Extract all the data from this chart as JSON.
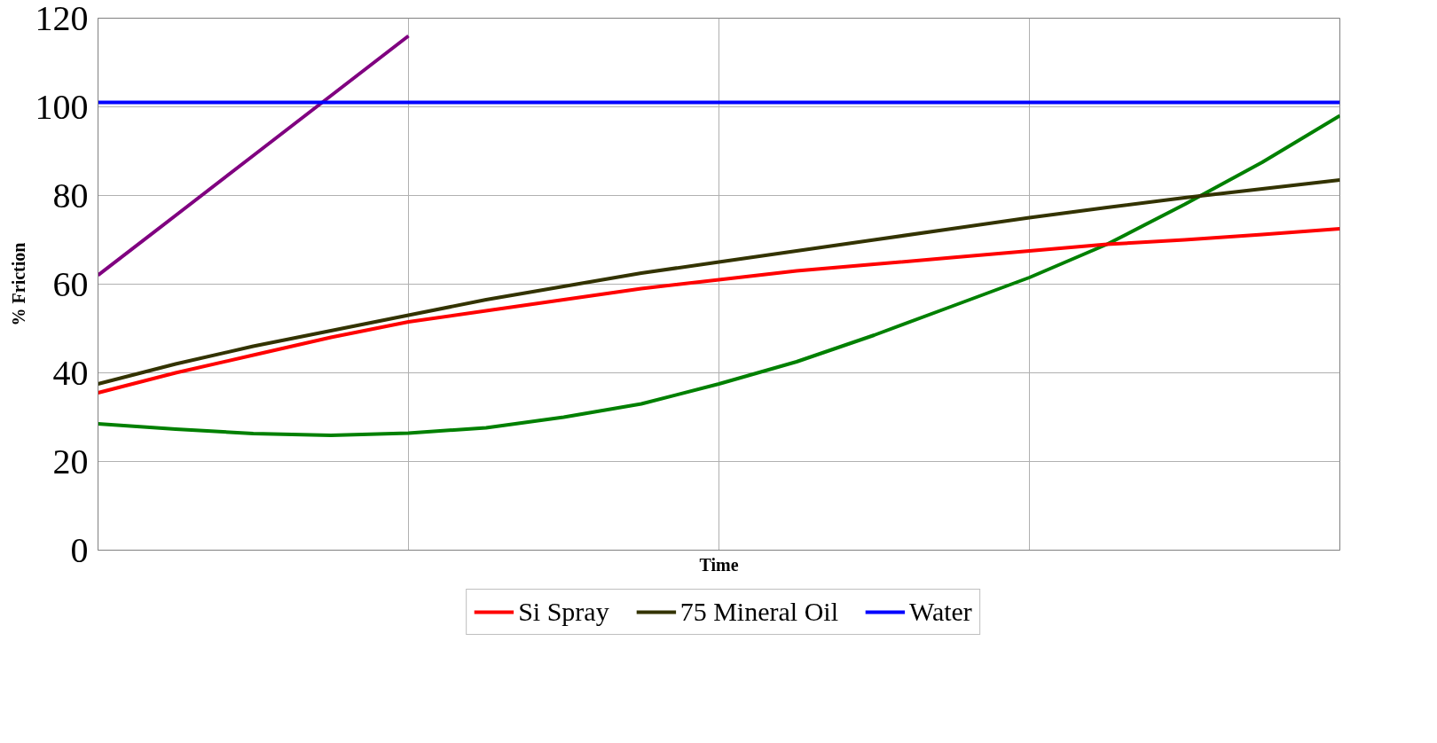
{
  "chart_data": {
    "type": "line",
    "xlabel": "Time",
    "ylabel": "% Friction",
    "categories": [
      null,
      null,
      null,
      null,
      null,
      null,
      null,
      null,
      null,
      null,
      null,
      null,
      null,
      null,
      null,
      null,
      null
    ],
    "ylim": [
      0,
      120
    ],
    "yticks": [
      0,
      20,
      40,
      60,
      80,
      100,
      120
    ],
    "tick_labels": "y",
    "grid": true,
    "legend": "bottom",
    "marker": "none",
    "line_style": "solid",
    "series": [
      {
        "color": "#800080",
        "values": [
          62,
          75.5,
          89,
          102.5,
          116,
          null,
          null,
          null,
          null,
          null,
          null,
          null,
          null,
          null,
          null,
          null,
          null
        ]
      },
      {
        "color": "#008000",
        "values": [
          28.5,
          27.3,
          26.3,
          25.9,
          26.4,
          27.6,
          30,
          33,
          37.5,
          42.5,
          48.5,
          55,
          61.5,
          69,
          78,
          87.5,
          98
        ]
      },
      {
        "name": "Si Spray",
        "color": "#ff0000",
        "values": [
          35.5,
          40,
          44,
          48,
          51.5,
          54,
          56.5,
          59,
          61,
          63,
          64.5,
          66,
          67.5,
          69,
          70,
          71.2,
          72.5
        ]
      },
      {
        "name": "75 Mineral Oil",
        "color": "#333300",
        "values": [
          37.5,
          42,
          46,
          49.5,
          53,
          56.5,
          59.5,
          62.5,
          65,
          67.5,
          70,
          72.5,
          75,
          77.3,
          79.5,
          81.5,
          83.5
        ]
      },
      {
        "name": "Water",
        "color": "#0000ff",
        "values": [
          101,
          101,
          101,
          101,
          101,
          101,
          101,
          101,
          101,
          101,
          101,
          101,
          101,
          101,
          101,
          101,
          101
        ]
      }
    ]
  }
}
